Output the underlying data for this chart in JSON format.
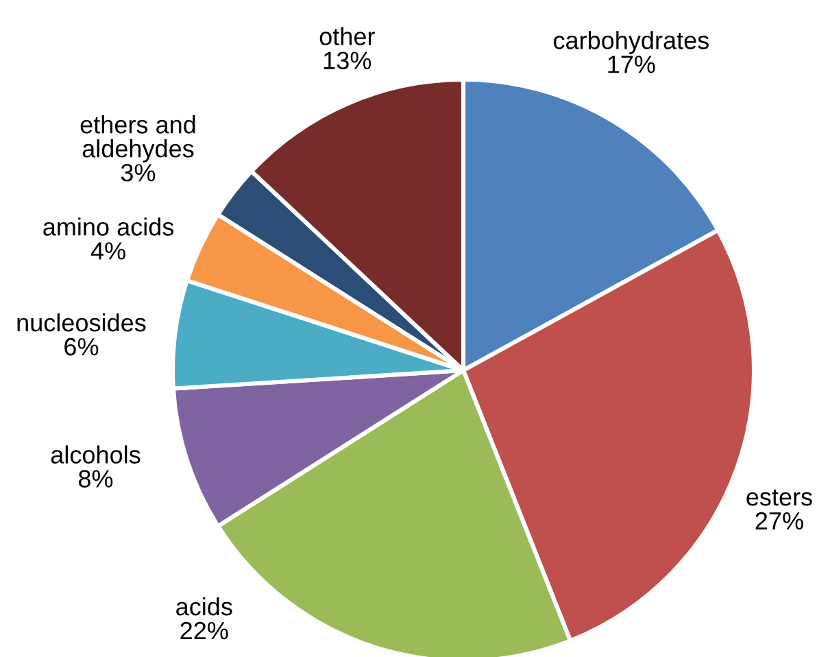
{
  "chart_data": {
    "type": "pie",
    "categories": [
      "carbohydrates",
      "esters",
      "acids",
      "alcohols",
      "nucleosides",
      "amino acids",
      "ethers and aldehydes",
      "other"
    ],
    "values": [
      17,
      27,
      22,
      8,
      6,
      4,
      3,
      13
    ],
    "value_labels": [
      "17%",
      "27%",
      "22%",
      "8%",
      "6%",
      "4%",
      "3%",
      "13%"
    ],
    "colors": [
      "#4f81bd",
      "#c0504d",
      "#9bbb59",
      "#8064a2",
      "#4bacc6",
      "#f79646",
      "#2c4d75",
      "#772c2a"
    ]
  }
}
